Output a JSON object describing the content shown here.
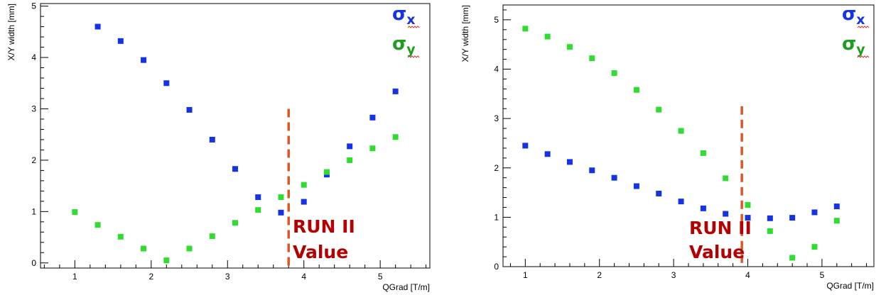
{
  "colors": {
    "x": "#1432e6",
    "y": "#2fdc2f",
    "legend_y": "#1e9e1e",
    "marker_line": "#d9572b",
    "annotation": "#b30000"
  },
  "legend": {
    "x_label": "σ",
    "x_sub": "x",
    "y_label": "σ",
    "y_sub": "y"
  },
  "annotation": {
    "line1": "RUN II",
    "line2": "Value"
  },
  "chart_data": [
    {
      "type": "scatter",
      "xlabel": "QGrad [T/m]",
      "ylabel": "X/Y width [mm]",
      "xlim": [
        0.55,
        5.65
      ],
      "ylim": [
        -0.1,
        5.05
      ],
      "xticks": [
        1,
        2,
        3,
        4,
        5
      ],
      "yticks": [
        0,
        1,
        2,
        3,
        4,
        5
      ],
      "vline_x": 3.8,
      "vline_ymax": 3.0,
      "series": [
        {
          "name": "σx",
          "color_key": "x",
          "x": [
            1.3,
            1.6,
            1.9,
            2.2,
            2.5,
            2.8,
            3.1,
            3.4,
            3.7,
            4.0,
            4.3,
            4.6,
            4.9,
            5.2
          ],
          "y": [
            4.6,
            4.32,
            3.95,
            3.5,
            2.98,
            2.4,
            1.83,
            1.28,
            0.98,
            1.19,
            1.72,
            2.27,
            2.83,
            3.34
          ]
        },
        {
          "name": "σy",
          "color_key": "y",
          "x": [
            1.0,
            1.3,
            1.6,
            1.9,
            2.2,
            2.5,
            2.8,
            3.1,
            3.4,
            3.7,
            4.0,
            4.3,
            4.6,
            4.9,
            5.2
          ],
          "y": [
            0.99,
            0.74,
            0.51,
            0.28,
            0.05,
            0.28,
            0.52,
            0.78,
            1.03,
            1.28,
            1.52,
            1.77,
            2.0,
            2.23,
            2.45
          ]
        }
      ]
    },
    {
      "type": "scatter",
      "xlabel": "QGrad [T/m]",
      "ylabel": "X/Y width [mm]",
      "xlim": [
        0.7,
        5.7
      ],
      "ylim": [
        0.0,
        5.3
      ],
      "xticks": [
        1,
        2,
        3,
        4,
        5
      ],
      "yticks": [
        0,
        1,
        2,
        3,
        4,
        5
      ],
      "vline_x": 3.92,
      "vline_ymax": 3.25,
      "series": [
        {
          "name": "σx",
          "color_key": "x",
          "x": [
            1.0,
            1.3,
            1.6,
            1.9,
            2.2,
            2.5,
            2.8,
            3.1,
            3.4,
            3.7,
            4.0,
            4.3,
            4.6,
            4.9,
            5.2
          ],
          "y": [
            2.45,
            2.28,
            2.12,
            1.95,
            1.8,
            1.63,
            1.48,
            1.32,
            1.18,
            1.07,
            0.99,
            0.98,
            0.99,
            1.1,
            1.22
          ]
        },
        {
          "name": "σy",
          "color_key": "y",
          "x": [
            1.0,
            1.3,
            1.6,
            1.9,
            2.2,
            2.5,
            2.8,
            3.1,
            3.4,
            3.7,
            4.0,
            4.3,
            4.6,
            4.9,
            5.2
          ],
          "y": [
            4.82,
            4.66,
            4.45,
            4.22,
            3.92,
            3.58,
            3.18,
            2.75,
            2.3,
            1.79,
            1.25,
            0.72,
            0.18,
            0.4,
            0.93
          ]
        }
      ]
    }
  ]
}
